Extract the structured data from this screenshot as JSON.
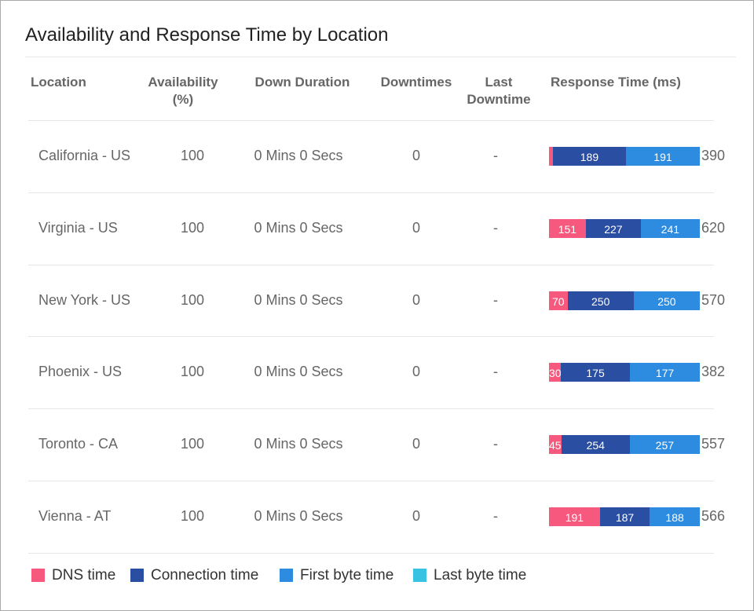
{
  "title": "Availability and Response Time by Location",
  "columns": [
    "Location",
    "Availability (%)",
    "Down Duration",
    "Downtimes",
    "Last Downtime",
    "Response Time (ms)"
  ],
  "rows": [
    {
      "location": "California - US",
      "availability": 100,
      "down_duration": "0 Mins 0 Secs",
      "downtimes": 0,
      "last_downtime": "-",
      "response": [
        10,
        189,
        191
      ],
      "total": 390
    },
    {
      "location": "Virginia - US",
      "availability": 100,
      "down_duration": "0 Mins 0 Secs",
      "downtimes": 0,
      "last_downtime": "-",
      "response": [
        151,
        227,
        241
      ],
      "total": 620
    },
    {
      "location": "New York - US",
      "availability": 100,
      "down_duration": "0 Mins 0 Secs",
      "downtimes": 0,
      "last_downtime": "-",
      "response": [
        70,
        250,
        250
      ],
      "total": 570
    },
    {
      "location": "Phoenix - US",
      "availability": 100,
      "down_duration": "0 Mins 0 Secs",
      "downtimes": 0,
      "last_downtime": "-",
      "response": [
        30,
        175,
        177
      ],
      "total": 382
    },
    {
      "location": "Toronto - CA",
      "availability": 100,
      "down_duration": "0 Mins 0 Secs",
      "downtimes": 0,
      "last_downtime": "-",
      "response": [
        45,
        254,
        257
      ],
      "total": 557
    },
    {
      "location": "Vienna - AT",
      "availability": 100,
      "down_duration": "0 Mins 0 Secs",
      "downtimes": 0,
      "last_downtime": "-",
      "response": [
        191,
        187,
        188
      ],
      "total": 566
    }
  ],
  "legend": [
    {
      "name": "DNS time",
      "color": "#f7587e"
    },
    {
      "name": "Connection time",
      "color": "#2a4ea1"
    },
    {
      "name": "First byte time",
      "color": "#2d8be0"
    },
    {
      "name": "Last byte time",
      "color": "#38c3e3"
    }
  ]
}
